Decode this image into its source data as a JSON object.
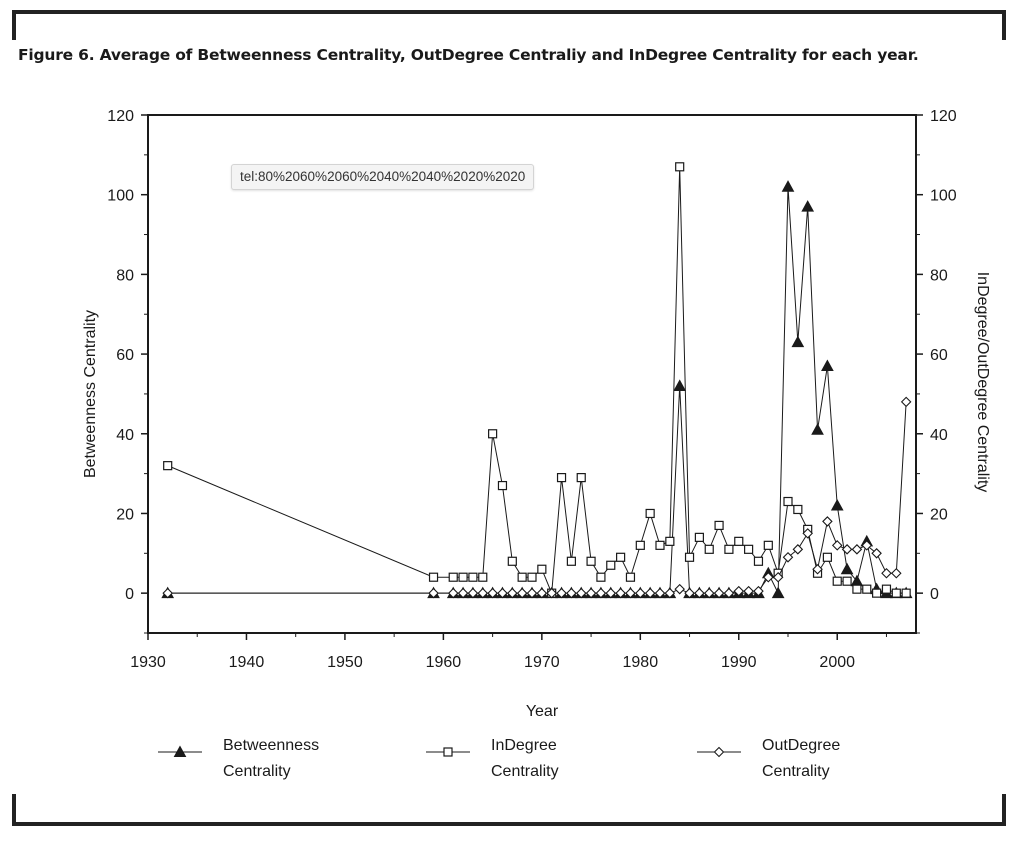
{
  "figure_title": "Figure 6. Average of Betweenness Centrality, OutDegree Centraliy and InDegree Centrality for each year.",
  "tooltip_text": "tel:80%2060%2060%2040%2040%2020%2020",
  "colors": {
    "line": "#1a1a1a",
    "frame": "#222222",
    "tooltip_bg": "#f4f4f4"
  },
  "chart_data": {
    "type": "line",
    "xlabel": "Year",
    "ylabel": "Betweenness Centrality",
    "y2label": "InDegree/OutDegree Centrality",
    "xlim": [
      1930,
      2008
    ],
    "ylim": [
      -10,
      120
    ],
    "y2lim": [
      -10,
      120
    ],
    "x_ticks": [
      1930,
      1940,
      1950,
      1960,
      1970,
      1980,
      1990,
      2000
    ],
    "y_ticks": [
      0,
      20,
      40,
      60,
      80,
      100,
      120
    ],
    "y2_ticks": [
      0,
      20,
      40,
      60,
      80,
      100,
      120
    ],
    "legend_position": "bottom",
    "series": [
      {
        "name": "Betweenness Centrality",
        "marker": "filled-triangle",
        "axis": "left",
        "points": [
          [
            1932,
            0
          ],
          [
            1959,
            0
          ],
          [
            1961,
            0
          ],
          [
            1962,
            0
          ],
          [
            1963,
            0
          ],
          [
            1964,
            0
          ],
          [
            1965,
            0
          ],
          [
            1966,
            0
          ],
          [
            1967,
            0
          ],
          [
            1968,
            0
          ],
          [
            1969,
            0
          ],
          [
            1970,
            0
          ],
          [
            1971,
            0
          ],
          [
            1972,
            0
          ],
          [
            1973,
            0
          ],
          [
            1974,
            0
          ],
          [
            1975,
            0
          ],
          [
            1976,
            0
          ],
          [
            1977,
            0
          ],
          [
            1978,
            0
          ],
          [
            1979,
            0
          ],
          [
            1980,
            0
          ],
          [
            1981,
            0
          ],
          [
            1982,
            0
          ],
          [
            1983,
            0
          ],
          [
            1984,
            52
          ],
          [
            1985,
            0
          ],
          [
            1986,
            0
          ],
          [
            1987,
            0
          ],
          [
            1988,
            0
          ],
          [
            1989,
            0
          ],
          [
            1990,
            0
          ],
          [
            1991,
            0
          ],
          [
            1992,
            0
          ],
          [
            1993,
            5
          ],
          [
            1994,
            0
          ],
          [
            1995,
            102
          ],
          [
            1996,
            63
          ],
          [
            1997,
            97
          ],
          [
            1998,
            41
          ],
          [
            1999,
            57
          ],
          [
            2000,
            22
          ],
          [
            2001,
            6
          ],
          [
            2002,
            3
          ],
          [
            2003,
            13
          ],
          [
            2004,
            1
          ],
          [
            2005,
            0
          ],
          [
            2006,
            0
          ],
          [
            2007,
            0
          ]
        ]
      },
      {
        "name": "InDegree Centrality",
        "marker": "open-square",
        "axis": "right",
        "points": [
          [
            1932,
            32
          ],
          [
            1959,
            4
          ],
          [
            1961,
            4
          ],
          [
            1962,
            4
          ],
          [
            1963,
            4
          ],
          [
            1964,
            4
          ],
          [
            1965,
            40
          ],
          [
            1966,
            27
          ],
          [
            1967,
            8
          ],
          [
            1968,
            4
          ],
          [
            1969,
            4
          ],
          [
            1970,
            6
          ],
          [
            1971,
            0
          ],
          [
            1972,
            29
          ],
          [
            1973,
            8
          ],
          [
            1974,
            29
          ],
          [
            1975,
            8
          ],
          [
            1976,
            4
          ],
          [
            1977,
            7
          ],
          [
            1978,
            9
          ],
          [
            1979,
            4
          ],
          [
            1980,
            12
          ],
          [
            1981,
            20
          ],
          [
            1982,
            12
          ],
          [
            1983,
            13
          ],
          [
            1984,
            107
          ],
          [
            1985,
            9
          ],
          [
            1986,
            14
          ],
          [
            1987,
            11
          ],
          [
            1988,
            17
          ],
          [
            1989,
            11
          ],
          [
            1990,
            13
          ],
          [
            1991,
            11
          ],
          [
            1992,
            8
          ],
          [
            1993,
            12
          ],
          [
            1994,
            5
          ],
          [
            1995,
            23
          ],
          [
            1996,
            21
          ],
          [
            1997,
            16
          ],
          [
            1998,
            5
          ],
          [
            1999,
            9
          ],
          [
            2000,
            3
          ],
          [
            2001,
            3
          ],
          [
            2002,
            1
          ],
          [
            2003,
            1
          ],
          [
            2004,
            0
          ],
          [
            2005,
            1
          ],
          [
            2006,
            0
          ],
          [
            2007,
            0
          ]
        ]
      },
      {
        "name": "OutDegree Centrality",
        "marker": "open-diamond",
        "axis": "right",
        "points": [
          [
            1932,
            0
          ],
          [
            1959,
            0
          ],
          [
            1961,
            0
          ],
          [
            1962,
            0
          ],
          [
            1963,
            0
          ],
          [
            1964,
            0
          ],
          [
            1965,
            0
          ],
          [
            1966,
            0
          ],
          [
            1967,
            0
          ],
          [
            1968,
            0
          ],
          [
            1969,
            0
          ],
          [
            1970,
            0
          ],
          [
            1971,
            0
          ],
          [
            1972,
            0
          ],
          [
            1973,
            0
          ],
          [
            1974,
            0
          ],
          [
            1975,
            0
          ],
          [
            1976,
            0
          ],
          [
            1977,
            0
          ],
          [
            1978,
            0
          ],
          [
            1979,
            0
          ],
          [
            1980,
            0
          ],
          [
            1981,
            0
          ],
          [
            1982,
            0
          ],
          [
            1983,
            0
          ],
          [
            1984,
            1
          ],
          [
            1985,
            0
          ],
          [
            1986,
            0
          ],
          [
            1987,
            0
          ],
          [
            1988,
            0
          ],
          [
            1989,
            0
          ],
          [
            1990,
            0.5
          ],
          [
            1991,
            0.5
          ],
          [
            1992,
            0.5
          ],
          [
            1993,
            4
          ],
          [
            1994,
            4
          ],
          [
            1995,
            9
          ],
          [
            1996,
            11
          ],
          [
            1997,
            15
          ],
          [
            1998,
            6
          ],
          [
            1999,
            18
          ],
          [
            2000,
            12
          ],
          [
            2001,
            11
          ],
          [
            2002,
            11
          ],
          [
            2003,
            12
          ],
          [
            2004,
            10
          ],
          [
            2005,
            5
          ],
          [
            2006,
            5
          ],
          [
            2007,
            48
          ]
        ]
      }
    ],
    "legend": [
      {
        "label_line1": "Betweenness",
        "label_line2": "Centrality",
        "marker": "filled-triangle"
      },
      {
        "label_line1": "InDegree",
        "label_line2": "Centrality",
        "marker": "open-square"
      },
      {
        "label_line1": "OutDegree",
        "label_line2": "Centrality",
        "marker": "open-diamond"
      }
    ]
  }
}
